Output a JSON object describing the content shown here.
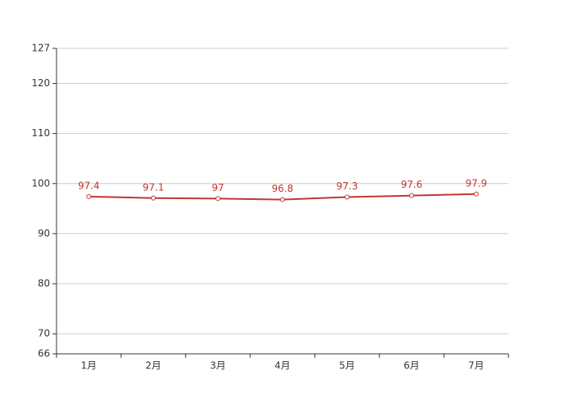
{
  "chart_data": {
    "type": "line",
    "categories": [
      "1月",
      "2月",
      "3月",
      "4月",
      "5月",
      "6月",
      "7月"
    ],
    "series": [
      {
        "color": "#c23531",
        "values": [
          97.4,
          97.1,
          97,
          96.8,
          97.3,
          97.6,
          97.9
        ]
      }
    ],
    "ylim": [
      66,
      127
    ],
    "yticks": [
      66,
      70,
      80,
      90,
      100,
      110,
      120,
      127
    ],
    "grid": true
  }
}
